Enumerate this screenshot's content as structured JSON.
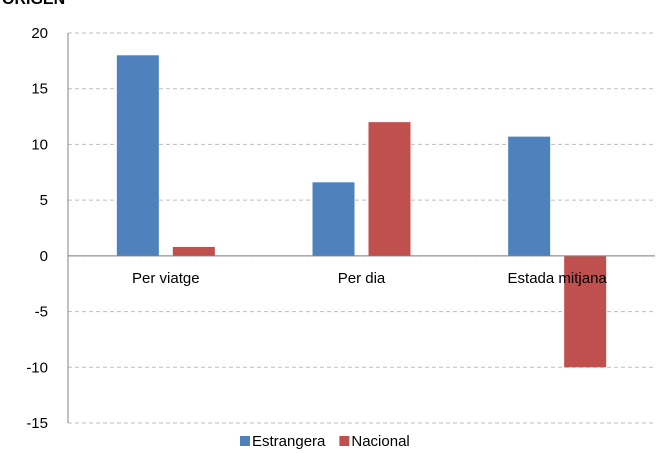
{
  "chart_data": {
    "type": "bar",
    "title": "ORIGEN",
    "categories": [
      "Per viatge",
      "Per dia",
      "Estada mitjana"
    ],
    "series": [
      {
        "name": "Estrangera",
        "color": "#4f81bd",
        "values": [
          18,
          6.6,
          10.7
        ]
      },
      {
        "name": "Nacional",
        "color": "#c0504d",
        "values": [
          0.8,
          12,
          -10
        ]
      }
    ],
    "ylim": [
      -15,
      20
    ],
    "yticks": [
      -15,
      -10,
      -5,
      0,
      5,
      10,
      15,
      20
    ],
    "grid": true,
    "legend": "bottom"
  }
}
